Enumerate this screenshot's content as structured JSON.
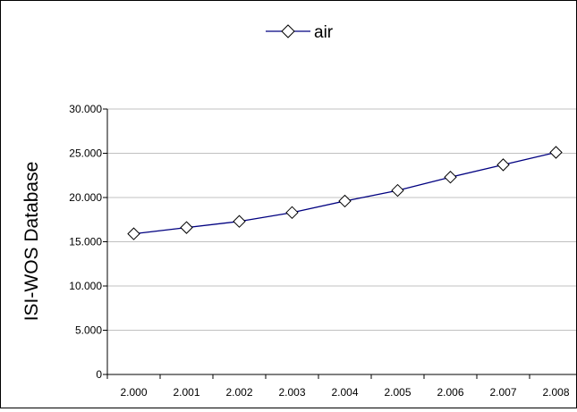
{
  "chart_data": {
    "type": "line",
    "title": "",
    "xlabel": "",
    "ylabel": "ISI-WOS Database",
    "categories": [
      "2.000",
      "2.001",
      "2.002",
      "2.003",
      "2.004",
      "2.005",
      "2.006",
      "2.007",
      "2.008"
    ],
    "yticks": [
      "0",
      "5.000",
      "10.000",
      "15.000",
      "20.000",
      "25.000",
      "30.000"
    ],
    "ylim": [
      0,
      30000
    ],
    "grid": true,
    "legend_position": "top-center",
    "series": [
      {
        "name": "air",
        "color": "#000080",
        "marker": "diamond",
        "values": [
          15900,
          16600,
          17300,
          18300,
          19600,
          20800,
          22300,
          23700,
          25100
        ]
      }
    ]
  }
}
